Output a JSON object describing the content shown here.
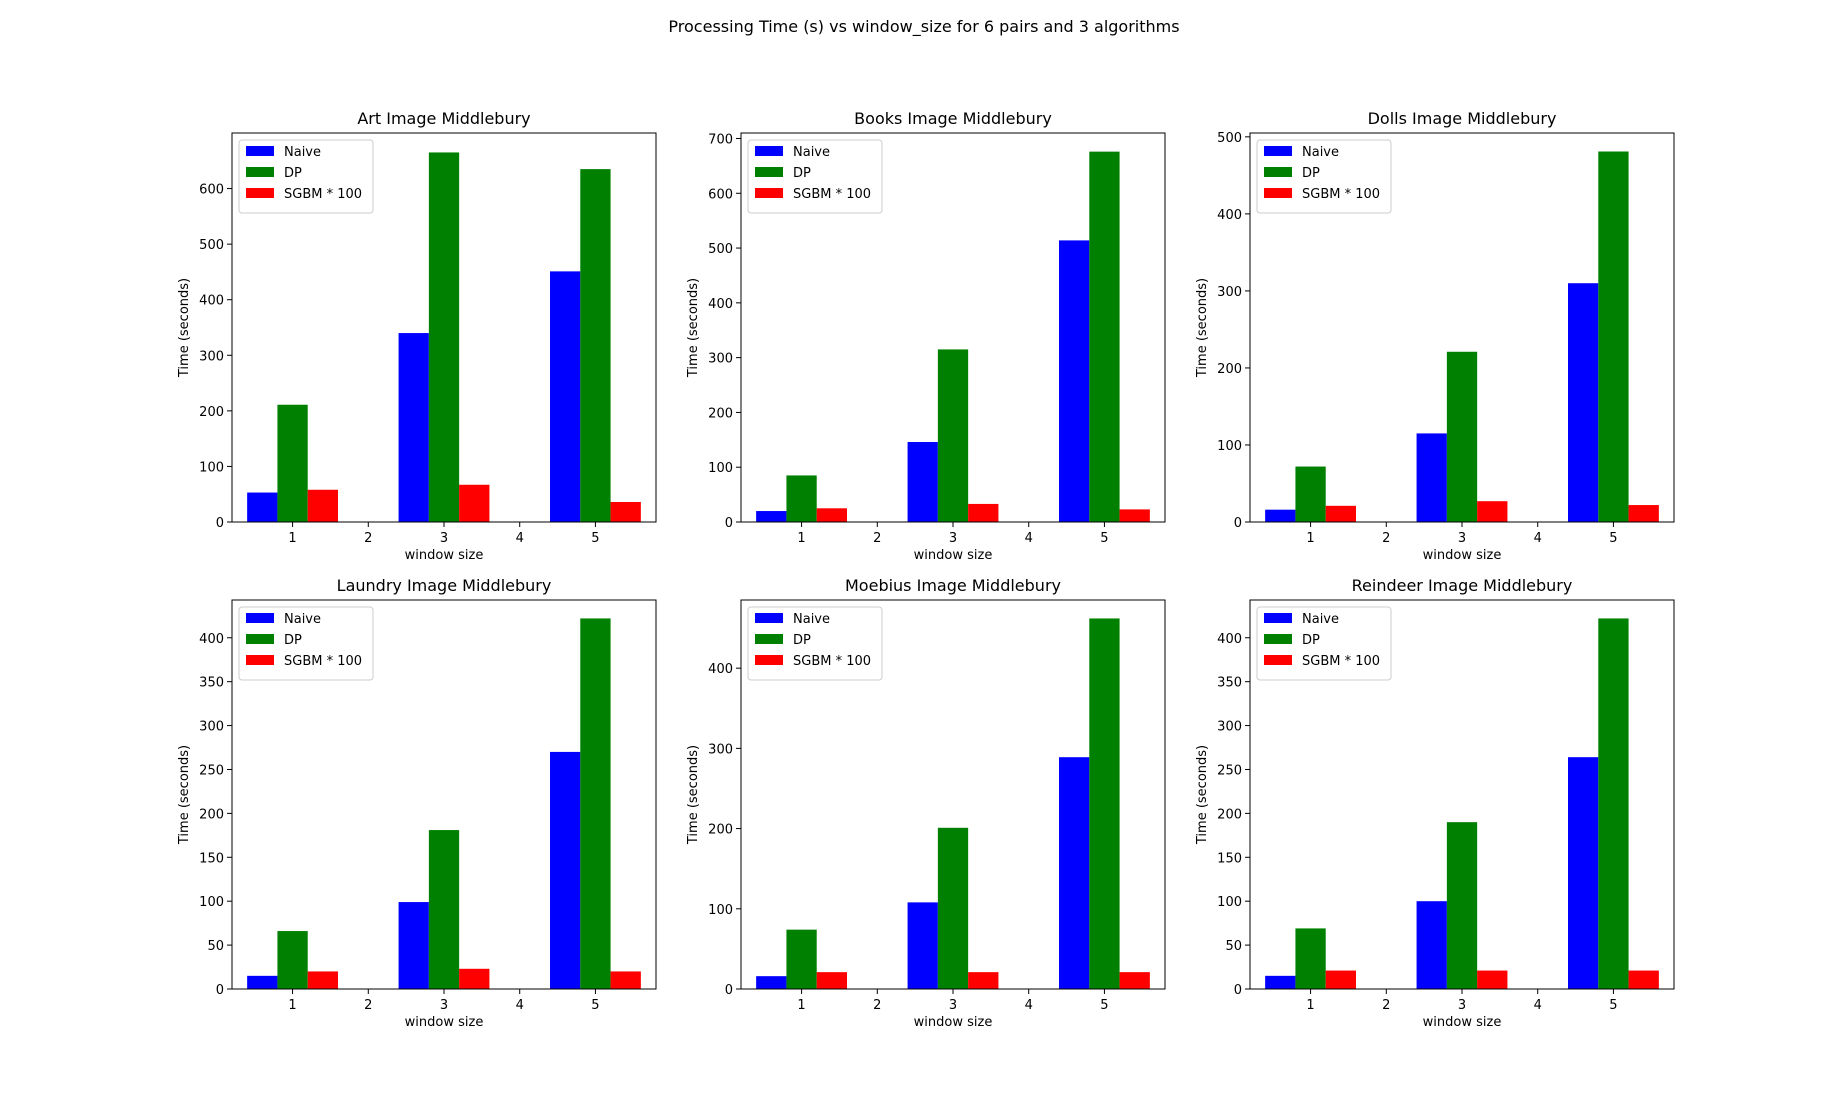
{
  "figure": {
    "title": "Processing Time (s) vs window_size for 6 pairs and 3 algorithms"
  },
  "series_meta": [
    {
      "name": "Naive",
      "color": "#0000ff"
    },
    {
      "name": "DP",
      "color": "#008000"
    },
    {
      "name": "SGBM * 100",
      "color": "#ff0000"
    }
  ],
  "chart_data": [
    {
      "type": "bar",
      "title": "Art Image Middlebury",
      "xlabel": "window size",
      "ylabel": "Time (seconds)",
      "xticks": [
        "1",
        "2",
        "3",
        "4",
        "5"
      ],
      "categories": [
        1,
        3,
        5
      ],
      "xlim": [
        0.2,
        5.8
      ],
      "ylim": [
        0,
        700
      ],
      "yticks": [
        0,
        100,
        200,
        300,
        400,
        500,
        600
      ],
      "series": [
        {
          "name": "Naive",
          "values": [
            53,
            340,
            451
          ]
        },
        {
          "name": "DP",
          "values": [
            211,
            665,
            635
          ]
        },
        {
          "name": "SGBM * 100",
          "values": [
            58,
            67,
            36
          ]
        }
      ]
    },
    {
      "type": "bar",
      "title": "Books Image Middlebury",
      "xlabel": "window size",
      "ylabel": "Time (seconds)",
      "xticks": [
        "1",
        "2",
        "3",
        "4",
        "5"
      ],
      "categories": [
        1,
        3,
        5
      ],
      "xlim": [
        0.2,
        5.8
      ],
      "ylim": [
        0,
        710
      ],
      "yticks": [
        0,
        100,
        200,
        300,
        400,
        500,
        600,
        700
      ],
      "series": [
        {
          "name": "Naive",
          "values": [
            20,
            146,
            514
          ]
        },
        {
          "name": "DP",
          "values": [
            85,
            315,
            676
          ]
        },
        {
          "name": "SGBM * 100",
          "values": [
            25,
            33,
            23
          ]
        }
      ]
    },
    {
      "type": "bar",
      "title": "Dolls Image Middlebury",
      "xlabel": "window size",
      "ylabel": "Time (seconds)",
      "xticks": [
        "1",
        "2",
        "3",
        "4",
        "5"
      ],
      "categories": [
        1,
        3,
        5
      ],
      "xlim": [
        0.2,
        5.8
      ],
      "ylim": [
        0,
        505
      ],
      "yticks": [
        0,
        100,
        200,
        300,
        400,
        500
      ],
      "series": [
        {
          "name": "Naive",
          "values": [
            16,
            115,
            310
          ]
        },
        {
          "name": "DP",
          "values": [
            72,
            221,
            481
          ]
        },
        {
          "name": "SGBM * 100",
          "values": [
            21,
            27,
            22
          ]
        }
      ]
    },
    {
      "type": "bar",
      "title": "Laundry Image Middlebury",
      "xlabel": "window size",
      "ylabel": "Time (seconds)",
      "xticks": [
        "1",
        "2",
        "3",
        "4",
        "5"
      ],
      "categories": [
        1,
        3,
        5
      ],
      "xlim": [
        0.2,
        5.8
      ],
      "ylim": [
        0,
        443
      ],
      "yticks": [
        0,
        50,
        100,
        150,
        200,
        250,
        300,
        350,
        400
      ],
      "series": [
        {
          "name": "Naive",
          "values": [
            15,
            99,
            270
          ]
        },
        {
          "name": "DP",
          "values": [
            66,
            181,
            422
          ]
        },
        {
          "name": "SGBM * 100",
          "values": [
            20,
            23,
            20
          ]
        }
      ]
    },
    {
      "type": "bar",
      "title": "Moebius Image Middlebury",
      "xlabel": "window size",
      "ylabel": "Time (seconds)",
      "xticks": [
        "1",
        "2",
        "3",
        "4",
        "5"
      ],
      "categories": [
        1,
        3,
        5
      ],
      "xlim": [
        0.2,
        5.8
      ],
      "ylim": [
        0,
        485
      ],
      "yticks": [
        0,
        100,
        200,
        300,
        400
      ],
      "series": [
        {
          "name": "Naive",
          "values": [
            16,
            108,
            289
          ]
        },
        {
          "name": "DP",
          "values": [
            74,
            201,
            462
          ]
        },
        {
          "name": "SGBM * 100",
          "values": [
            21,
            21,
            21
          ]
        }
      ]
    },
    {
      "type": "bar",
      "title": "Reindeer Image Middlebury",
      "xlabel": "window size",
      "ylabel": "Time (seconds)",
      "xticks": [
        "1",
        "2",
        "3",
        "4",
        "5"
      ],
      "categories": [
        1,
        3,
        5
      ],
      "xlim": [
        0.2,
        5.8
      ],
      "ylim": [
        0,
        443
      ],
      "yticks": [
        0,
        50,
        100,
        150,
        200,
        250,
        300,
        350,
        400
      ],
      "series": [
        {
          "name": "Naive",
          "values": [
            15,
            100,
            264
          ]
        },
        {
          "name": "DP",
          "values": [
            69,
            190,
            422
          ]
        },
        {
          "name": "SGBM * 100",
          "values": [
            21,
            21,
            21
          ]
        }
      ]
    }
  ]
}
